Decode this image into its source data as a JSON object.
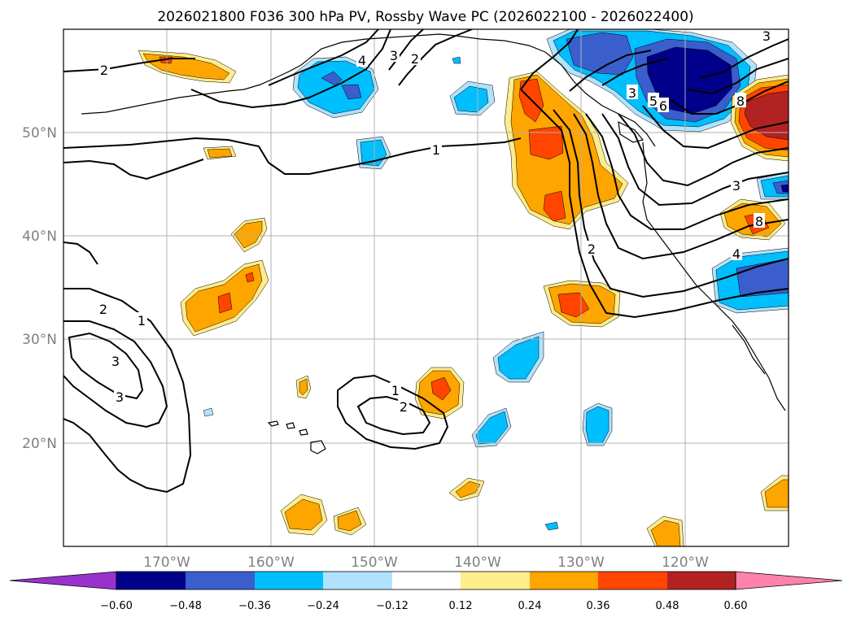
{
  "title": "2026021800 F036 300 hPa PV, Rossby Wave PC (2026022100 - 2026022400)",
  "lat_labels": [
    "50°N",
    "40°N",
    "30°N",
    "20°N"
  ],
  "lon_labels": [
    "170°W",
    "160°W",
    "150°W",
    "140°W",
    "130°W",
    "120°W"
  ],
  "colorbar": {
    "levels": [
      "−0.60",
      "−0.48",
      "−0.36",
      "−0.24",
      "−0.12",
      "0.12",
      "0.24",
      "0.36",
      "0.48",
      "0.60"
    ],
    "colors": [
      "#9932cc",
      "#00008b",
      "#3a5fcd",
      "#00bfff",
      "#b0e2ff",
      "#ffffff",
      "#ffec8b",
      "#ffa500",
      "#ff4500",
      "#b22222",
      "#ff82ab"
    ]
  },
  "contour_labels": [
    "2",
    "1",
    "2",
    "3",
    "4",
    "2",
    "3",
    "1",
    "2",
    "1",
    "2",
    "3",
    "3",
    "5",
    "6",
    "8",
    "3",
    "4",
    "2",
    "3",
    "8"
  ],
  "fill_colors": {
    "light_yellow": "#ffec8b",
    "orange": "#ffa500",
    "red_orange": "#ff4500",
    "dark_red": "#b22222",
    "light_blue": "#b0e2ff",
    "deep_sky_blue": "#00bfff",
    "royal_blue": "#3a5fcd",
    "navy": "#00008b"
  }
}
